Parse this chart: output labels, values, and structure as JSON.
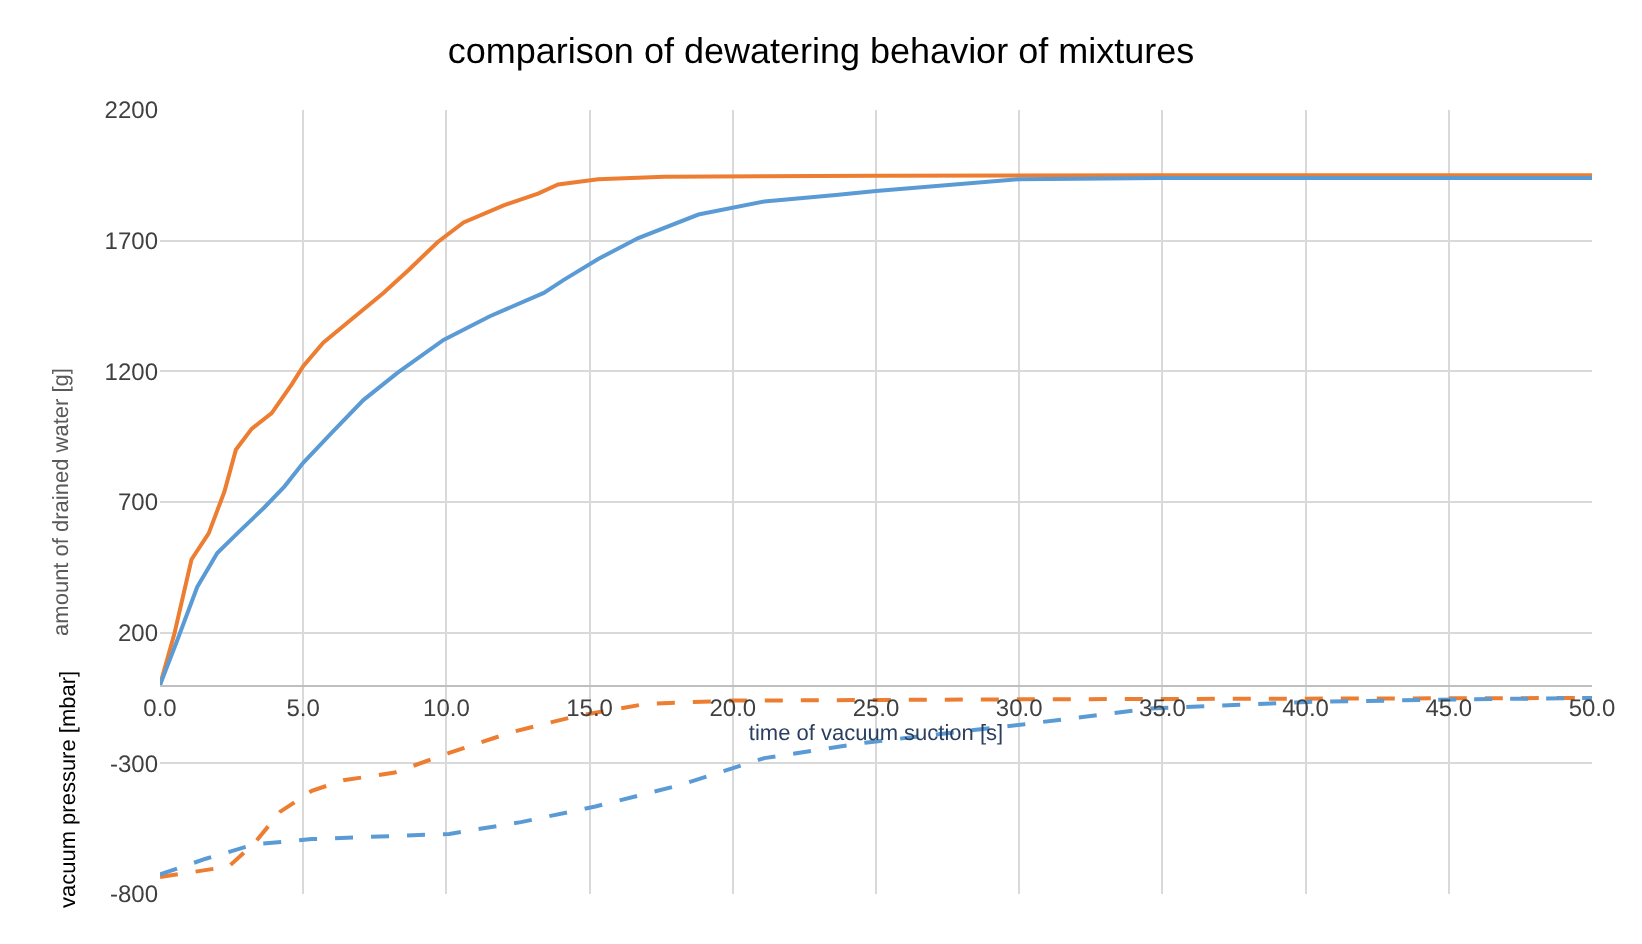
{
  "chart_data": {
    "type": "line",
    "title": "comparison of dewatering behavior of mixtures",
    "xlabel": "time of vacuum suction [s]",
    "ylabel": "amount of drained water [g]",
    "annotations": [
      "vacuum pressure [mbar]"
    ],
    "xlim": [
      0,
      50
    ],
    "xticks": [
      {
        "value": 0,
        "label": "0.0"
      },
      {
        "value": 5,
        "label": "5.0"
      },
      {
        "value": 10,
        "label": "10.0"
      },
      {
        "value": 15,
        "label": "15.0"
      },
      {
        "value": 20,
        "label": "20.0"
      },
      {
        "value": 25,
        "label": "25.0"
      },
      {
        "value": 30,
        "label": "30.0"
      },
      {
        "value": 35,
        "label": "35.0"
      },
      {
        "value": 40,
        "label": "40.0"
      },
      {
        "value": 45,
        "label": "45.0"
      },
      {
        "value": 50,
        "label": "50.0"
      }
    ],
    "ylim": [
      -800,
      2200
    ],
    "yticks": [
      -800,
      -300,
      200,
      700,
      1200,
      1700,
      2200
    ],
    "grid": true,
    "marker": "none",
    "series": [
      {
        "color": "#ed7d31",
        "line_style": "solid",
        "x": [
          0,
          0.5,
          1.1,
          1.7,
          2.25,
          2.65,
          3.2,
          3.9,
          4.6,
          5.0,
          5.7,
          6.7,
          7.8,
          8.7,
          9.7,
          10.6,
          12.0,
          13.2,
          13.9,
          15.3,
          17.6,
          25,
          35,
          50
        ],
        "values": [
          0,
          195,
          480,
          580,
          740,
          900,
          980,
          1040,
          1150,
          1220,
          1310,
          1400,
          1500,
          1590,
          1695,
          1770,
          1835,
          1880,
          1915,
          1935,
          1945,
          1948,
          1950,
          1950
        ]
      },
      {
        "color": "#5b9bd5",
        "line_style": "solid",
        "x": [
          0,
          0.6,
          1.3,
          2.0,
          2.7,
          3.65,
          4.35,
          5.0,
          6.0,
          7.1,
          8.3,
          9.9,
          11.5,
          13.4,
          14.1,
          15.3,
          16.7,
          18.8,
          21.1,
          23.6,
          25,
          30,
          35,
          50
        ],
        "values": [
          0,
          170,
          375,
          505,
          580,
          680,
          760,
          850,
          965,
          1090,
          1195,
          1320,
          1410,
          1500,
          1550,
          1630,
          1710,
          1800,
          1850,
          1875,
          1890,
          1935,
          1940,
          1940
        ]
      },
      {
        "color": "#ed7d31",
        "line_style": "dashed",
        "x": [
          0,
          2.4,
          3.3,
          4.2,
          5.3,
          6.4,
          8.2,
          10.1,
          12.3,
          14.5,
          17.0,
          20,
          30,
          50
        ],
        "values": [
          -735,
          -695,
          -605,
          -485,
          -405,
          -365,
          -335,
          -260,
          -180,
          -120,
          -72,
          -60,
          -55,
          -50
        ]
      },
      {
        "color": "#5b9bd5",
        "line_style": "dashed",
        "x": [
          0,
          1.6,
          3.3,
          5.3,
          10.1,
          12.6,
          15.2,
          18.1,
          21.1,
          24.7,
          30.2,
          34.6,
          40.1,
          45.6,
          50
        ],
        "values": [
          -725,
          -665,
          -610,
          -590,
          -570,
          -525,
          -465,
          -385,
          -280,
          -220,
          -150,
          -90,
          -65,
          -55,
          -50
        ]
      }
    ]
  }
}
